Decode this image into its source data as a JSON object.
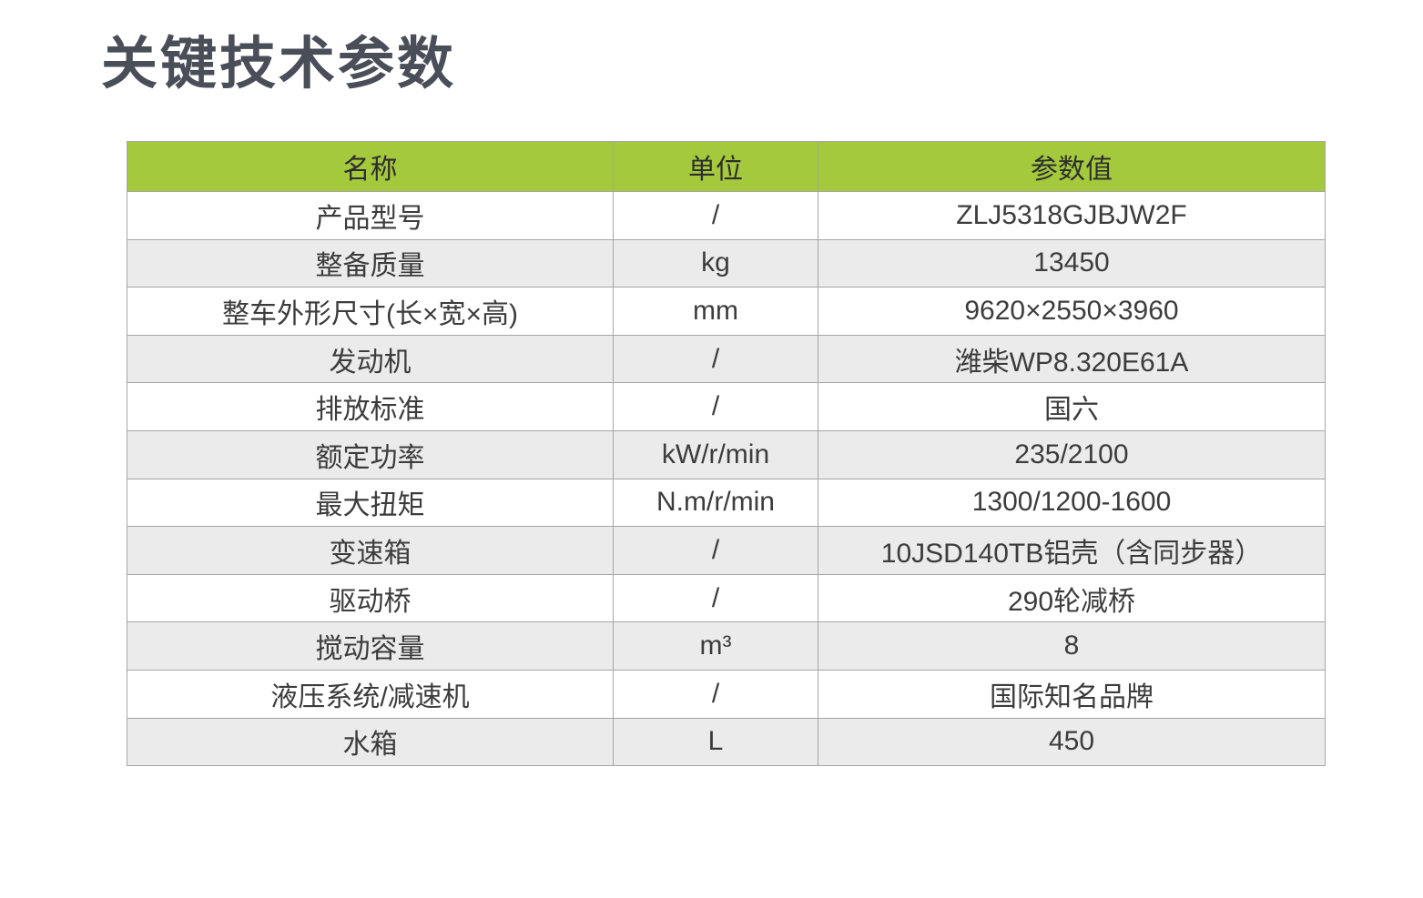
{
  "page": {
    "title": "关键技术参数"
  },
  "table": {
    "headers": [
      "名称",
      "单位",
      "参数值"
    ],
    "rows": [
      {
        "name": "产品型号",
        "unit": "/",
        "value": "ZLJ5318GJBJW2F"
      },
      {
        "name": "整备质量",
        "unit": "kg",
        "value": "13450"
      },
      {
        "name": "整车外形尺寸(长×宽×高)",
        "unit": "mm",
        "value": "9620×2550×3960"
      },
      {
        "name": "发动机",
        "unit": "/",
        "value": "潍柴WP8.320E61A"
      },
      {
        "name": "排放标准",
        "unit": "/",
        "value": "国六"
      },
      {
        "name": "额定功率",
        "unit": "kW/r/min",
        "value": "235/2100"
      },
      {
        "name": "最大扭矩",
        "unit": "N.m/r/min",
        "value": "1300/1200-1600"
      },
      {
        "name": "变速箱",
        "unit": "/",
        "value": "10JSD140TB铝壳（含同步器）"
      },
      {
        "name": "驱动桥",
        "unit": "/",
        "value": "290轮减桥"
      },
      {
        "name": "搅动容量",
        "unit": "m³",
        "value": "8"
      },
      {
        "name": "液压系统/减速机",
        "unit": "/",
        "value": "国际知名品牌"
      },
      {
        "name": "水箱",
        "unit": "L",
        "value": "450"
      }
    ]
  },
  "colors": {
    "header_bg": "#a4c93c",
    "row_alt_bg": "#ebebeb",
    "title_color": "#4a4e59",
    "border_color": "#a6a6a6",
    "text_color": "#3c3c3c",
    "header_text": "#2e2e2e"
  }
}
